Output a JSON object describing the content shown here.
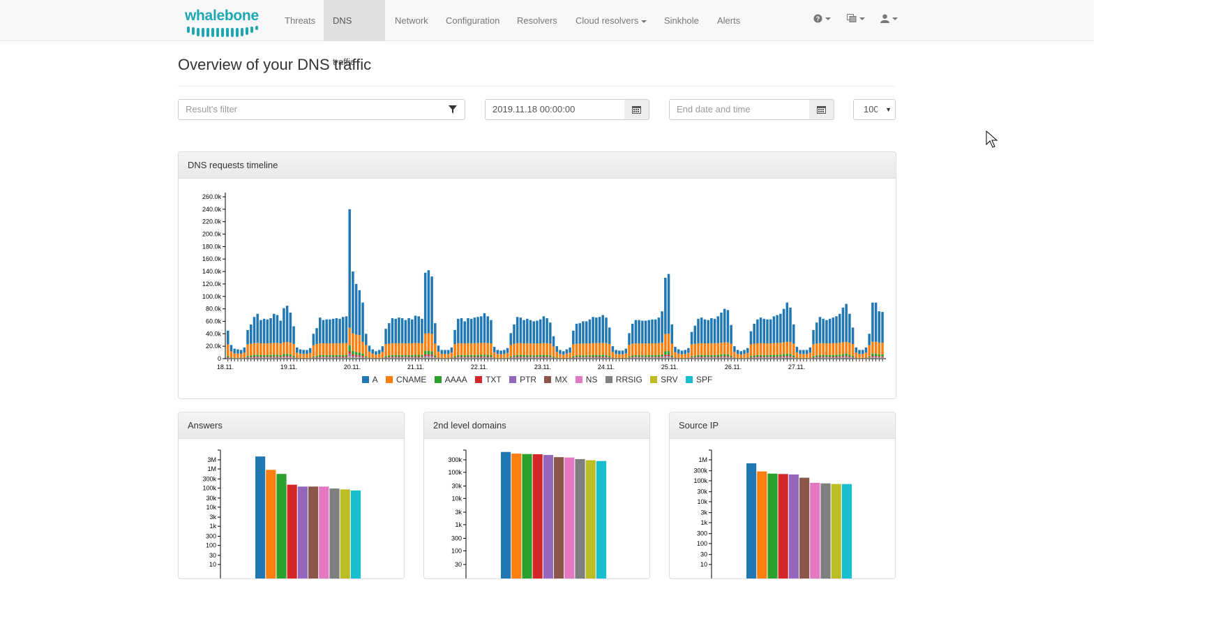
{
  "navbar": {
    "brand": "whalebone",
    "items": [
      {
        "label": "Threats",
        "active": false
      },
      {
        "label": "DNS traffic",
        "active": true
      },
      {
        "label": "Network",
        "active": false
      },
      {
        "label": "Configuration",
        "active": false
      },
      {
        "label": "Resolvers",
        "active": false
      },
      {
        "label": "Cloud resolvers",
        "active": false
      },
      {
        "label": "Sinkhole",
        "active": false
      },
      {
        "label": "Alerts",
        "active": false
      }
    ],
    "icons": [
      "question-icon",
      "language-icon",
      "user-icon"
    ]
  },
  "page": {
    "title": "Overview of your DNS traffic"
  },
  "filters": {
    "result_filter_placeholder": "Result's filter",
    "start_date_value": "2019.11.18 00:00:00",
    "end_date_placeholder": "End date and time",
    "limit_value": "100"
  },
  "colors": {
    "A": "#1f77b4",
    "CNAME": "#ff7f0e",
    "AAAA": "#2ca02c",
    "TXT": "#d62728",
    "PTR": "#9467bd",
    "MX": "#8c564b",
    "NS": "#e377c2",
    "RRSIG": "#7f7f7f",
    "SRV": "#bcbd22",
    "SPF": "#17becf"
  },
  "timeline": {
    "heading": "DNS requests timeline",
    "chart_data": {
      "type": "bar",
      "stacked": true,
      "y_ticks": [
        "0",
        "20.0k",
        "40.0k",
        "60.0k",
        "80.0k",
        "100.0k",
        "120.0k",
        "140.0k",
        "160.0k",
        "180.0k",
        "200.0k",
        "220.0k",
        "240.0k",
        "260.0k"
      ],
      "ylim": [
        0,
        260000
      ],
      "x_ticks": [
        "18.11.",
        "19.11.",
        "20.11.",
        "21.11.",
        "22.11.",
        "23.11.",
        "24.11.",
        "25.11.",
        "26.11.",
        "27.11."
      ],
      "series_names": [
        "A",
        "CNAME",
        "AAAA",
        "TXT",
        "PTR",
        "MX",
        "NS",
        "RRSIG",
        "SRV",
        "SPF"
      ],
      "totals": [
        45000,
        22000,
        16000,
        15000,
        14000,
        18000,
        46000,
        55000,
        67000,
        72000,
        62000,
        64000,
        63000,
        65000,
        72000,
        70000,
        61000,
        81000,
        85000,
        74000,
        52000,
        18000,
        15000,
        14000,
        14000,
        17000,
        40000,
        49000,
        66000,
        62000,
        63000,
        63000,
        64000,
        65000,
        64000,
        67000,
        68000,
        240000,
        140000,
        120000,
        110000,
        90000,
        40000,
        21000,
        15000,
        12000,
        14000,
        20000,
        48000,
        57000,
        65000,
        64000,
        66000,
        65000,
        62000,
        65000,
        63000,
        69000,
        68000,
        64000,
        138000,
        142000,
        132000,
        57000,
        21000,
        14000,
        14000,
        14000,
        18000,
        46000,
        64000,
        65000,
        60000,
        65000,
        64000,
        66000,
        67000,
        68000,
        73000,
        68000,
        62000,
        19000,
        14000,
        13000,
        14000,
        17000,
        41000,
        55000,
        67000,
        66000,
        62000,
        64000,
        62000,
        60000,
        61000,
        63000,
        68000,
        65000,
        58000,
        36000,
        20000,
        14000,
        12000,
        15000,
        18000,
        45000,
        56000,
        57000,
        60000,
        60000,
        63000,
        67000,
        66000,
        67000,
        70000,
        66000,
        50000,
        20000,
        14000,
        13000,
        13000,
        16000,
        41000,
        56000,
        62000,
        62000,
        61000,
        61000,
        62000,
        63000,
        63000,
        66000,
        76000,
        130000,
        136000,
        55000,
        19000,
        15000,
        13000,
        14000,
        17000,
        43000,
        53000,
        64000,
        66000,
        63000,
        62000,
        65000,
        64000,
        68000,
        74000,
        80000,
        78000,
        54000,
        20000,
        14000,
        12000,
        14000,
        17000,
        44000,
        56000,
        63000,
        66000,
        64000,
        63000,
        63000,
        68000,
        70000,
        72000,
        80000,
        90000,
        82000,
        55000,
        19000,
        14000,
        14000,
        14000,
        18000,
        46000,
        58000,
        67000,
        64000,
        62000,
        64000,
        66000,
        68000,
        72000,
        82000,
        88000,
        72000,
        50000,
        18000,
        14000,
        14000,
        18000,
        40000,
        90000,
        90000,
        76000,
        75000
      ]
    },
    "legend": [
      "A",
      "CNAME",
      "AAAA",
      "TXT",
      "PTR",
      "MX",
      "NS",
      "RRSIG",
      "SRV",
      "SPF"
    ]
  },
  "panels": [
    {
      "heading": "Answers",
      "chart_data": {
        "type": "bar",
        "scale": "log",
        "y_ticks": [
          "10",
          "30",
          "100",
          "300",
          "1k",
          "3k",
          "10k",
          "30k",
          "100k",
          "300k",
          "1M",
          "3M"
        ],
        "values": [
          4500000,
          900000,
          550000,
          150000,
          120000,
          120000,
          120000,
          95000,
          85000,
          75000
        ]
      }
    },
    {
      "heading": "2nd level domains",
      "chart_data": {
        "type": "bar",
        "scale": "log",
        "y_ticks": [
          "30",
          "100",
          "300",
          "1k",
          "3k",
          "10k",
          "30k",
          "100k",
          "300k"
        ],
        "values": [
          600000,
          520000,
          500000,
          490000,
          460000,
          380000,
          370000,
          320000,
          290000,
          270000
        ]
      }
    },
    {
      "heading": "Source IP",
      "chart_data": {
        "type": "bar",
        "scale": "log",
        "y_ticks": [
          "10",
          "30",
          "100",
          "300",
          "1k",
          "3k",
          "10k",
          "30k",
          "100k",
          "300k",
          "1M"
        ],
        "values": [
          680000,
          280000,
          220000,
          210000,
          200000,
          140000,
          80000,
          75000,
          70000,
          70000
        ]
      }
    }
  ]
}
